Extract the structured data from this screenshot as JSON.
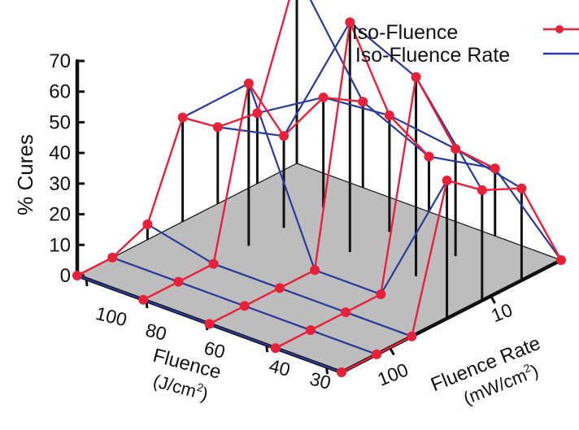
{
  "colors": {
    "iso_fluence": "#e8203a",
    "iso_fluence_rate": "#2a3a9a",
    "floor": "#bdbdbd",
    "axis": "#111111",
    "drop_line": "#111111"
  },
  "chart_data": {
    "type": "scatter",
    "title": "",
    "legend": {
      "position": "top-right",
      "entries": [
        {
          "label": "Iso-Fluence",
          "style": "red line with dot markers"
        },
        {
          "label": "Iso-Fluence Rate",
          "style": "blue line"
        }
      ]
    },
    "axes": {
      "z": {
        "label": "% Cures",
        "ticks": [
          "0",
          "10",
          "20",
          "30",
          "40",
          "50",
          "60",
          "70"
        ],
        "range": [
          0,
          70
        ]
      },
      "fluence": {
        "label_line1": "Fluence",
        "label_line2": "(J/cm",
        "label_sup": "2",
        "label_end": ")",
        "ticks": [
          "100",
          "80",
          "60",
          "40",
          "30"
        ]
      },
      "fluence_rate": {
        "label_line1": "Fluence Rate",
        "label_line2": "(mW/cm",
        "label_sup": "2",
        "label_end": ")",
        "ticks": [
          "10",
          "100"
        ]
      }
    },
    "fluence_values": [
      100,
      80,
      60,
      40,
      30
    ],
    "series": [
      {
        "name": "Iso-Fluence",
        "fluence": 100,
        "rate_pos": [
          0.0,
          0.16,
          0.32,
          0.48,
          0.64,
          0.82,
          1.0
        ],
        "cures": [
          0,
          0,
          5,
          34,
          25,
          23,
          62
        ]
      },
      {
        "name": "Iso-Fluence",
        "fluence": 80,
        "rate_pos": [
          0.0,
          0.16,
          0.32,
          0.48,
          0.64,
          0.82,
          1.0
        ],
        "cures": [
          0,
          0,
          0,
          53,
          30,
          36,
          28
        ]
      },
      {
        "name": "Iso-Fluence",
        "fluence": 60,
        "rate_pos": [
          0.0,
          0.16,
          0.32,
          0.48,
          0.64,
          0.82,
          1.0
        ],
        "cures": [
          0,
          0,
          0,
          0,
          75,
          38,
          18
        ]
      },
      {
        "name": "Iso-Fluence",
        "fluence": 40,
        "rate_pos": [
          0.0,
          0.16,
          0.32,
          0.48,
          0.64,
          0.82,
          1.0
        ],
        "cures": [
          0,
          0,
          0,
          0,
          65,
          35,
          22
        ]
      },
      {
        "name": "Iso-Fluence",
        "fluence": 30,
        "rate_pos": [
          0.0,
          0.16,
          0.32,
          0.48,
          0.64,
          0.82,
          1.0
        ],
        "cures": [
          0,
          0,
          0,
          45,
          36,
          30,
          0
        ]
      }
    ]
  }
}
